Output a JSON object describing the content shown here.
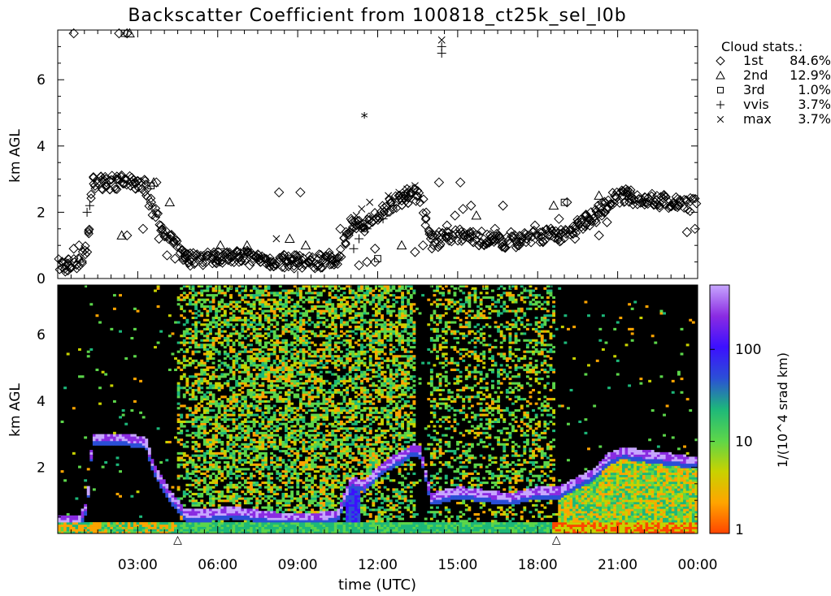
{
  "title": "Backscatter Coefficient from 100818_ct25k_sel_l0b",
  "chart_data": [
    {
      "type": "scatter",
      "panel": "cloud-base",
      "ylabel": "km AGL",
      "ylim": [
        0,
        7.5
      ],
      "yticks": [
        0,
        2,
        4,
        6
      ],
      "xlim": [
        0,
        24
      ],
      "grid": false,
      "legend_position": "top-right",
      "legend_title": "Cloud stats.:",
      "series": [
        {
          "name": "1st",
          "pct": "84.6%",
          "marker": "diamond",
          "x": [
            0.4,
            0.6,
            0.8,
            1.1,
            1.4,
            1.8,
            2.2,
            2.6,
            2.9,
            3.2,
            3.5,
            3.8,
            4.1,
            4.4,
            4.8,
            5.2,
            5.6,
            6.0,
            6.4,
            6.8,
            7.2,
            7.6,
            8.0,
            8.3,
            8.6,
            9.0,
            9.4,
            9.8,
            10.2,
            10.6,
            11.0,
            11.3,
            11.6,
            11.9,
            12.2,
            12.5,
            12.8,
            13.1,
            13.4,
            13.7,
            14.0,
            14.3,
            14.6,
            14.9,
            15.2,
            15.5,
            15.8,
            16.1,
            16.4,
            16.7,
            17.0,
            17.3,
            17.6,
            17.9,
            18.2,
            18.5,
            18.8,
            19.1,
            19.4,
            19.7,
            20.0,
            20.3,
            20.6,
            20.9,
            21.2,
            21.5,
            21.8,
            22.1,
            22.4,
            22.7,
            23.0,
            23.3,
            23.6,
            23.9,
            2.3,
            3.7,
            8.3,
            9.1,
            11.9,
            14.3,
            15.1,
            0.6,
            2.6
          ],
          "y": [
            0.4,
            0.9,
            1.0,
            0.8,
            2.8,
            3.0,
            3.0,
            1.3,
            2.9,
            1.5,
            2.3,
            1.2,
            0.7,
            0.6,
            0.6,
            0.7,
            0.7,
            0.7,
            0.6,
            0.5,
            0.4,
            0.5,
            0.5,
            0.5,
            0.5,
            0.5,
            0.5,
            0.6,
            0.7,
            1.5,
            1.8,
            0.4,
            0.5,
            0.9,
            1.9,
            2.3,
            2.5,
            2.7,
            0.8,
            1.0,
            1.2,
            1.4,
            1.6,
            1.9,
            2.1,
            2.2,
            1.0,
            1.1,
            1.5,
            2.2,
            1.4,
            1.0,
            1.2,
            1.6,
            1.1,
            1.3,
            1.8,
            2.3,
            1.2,
            1.5,
            2.0,
            1.3,
            1.7,
            2.5,
            2.5,
            2.4,
            2.4,
            2.3,
            2.3,
            2.3,
            2.2,
            2.2,
            1.4,
            1.5,
            7.4,
            2.9,
            2.6,
            2.6,
            0.5,
            2.9,
            2.9,
            7.4,
            7.4
          ]
        },
        {
          "name": "2nd",
          "pct": "12.9%",
          "marker": "triangle",
          "x": [
            0.8,
            2.4,
            3.6,
            4.2,
            6.1,
            7.1,
            8.7,
            9.3,
            12.9,
            14.1,
            15.7,
            18.6,
            20.3,
            21.4,
            2.7
          ],
          "y": [
            0.6,
            1.3,
            2.9,
            2.3,
            1.0,
            1.0,
            1.2,
            1.0,
            1.0,
            1.3,
            1.9,
            2.2,
            2.5,
            2.5,
            7.4
          ]
        },
        {
          "name": "3rd",
          "pct": "1.0%",
          "marker": "square",
          "x": [
            2.5,
            3.5,
            12.0,
            19.0
          ],
          "y": [
            7.4,
            2.8,
            0.6,
            2.3
          ]
        },
        {
          "name": "vvis",
          "pct": "3.7%",
          "marker": "plus",
          "x": [
            1.1,
            1.2,
            11.1,
            11.3,
            11.6,
            12.2,
            12.6,
            13.0,
            13.3,
            14.4,
            14.4
          ],
          "y": [
            2.0,
            2.2,
            0.9,
            1.2,
            1.5,
            1.8,
            2.2,
            2.5,
            2.7,
            7.0,
            6.8
          ]
        },
        {
          "name": "max",
          "pct": "3.7%",
          "marker": "x",
          "x": [
            11.2,
            11.4,
            11.7,
            12.4,
            12.8,
            13.1,
            13.4,
            14.4,
            8.2
          ],
          "y": [
            1.9,
            2.1,
            2.3,
            2.5,
            2.6,
            2.7,
            2.8,
            7.2,
            1.2
          ]
        }
      ],
      "annotations": [
        {
          "x": 11.5,
          "y": 4.9,
          "label": "*"
        }
      ]
    },
    {
      "type": "heatmap",
      "panel": "backscatter",
      "ylabel": "km AGL",
      "xlabel": "time (UTC)",
      "ylim": [
        0,
        7.5
      ],
      "yticks": [
        2,
        4,
        6
      ],
      "xlim": [
        0,
        24
      ],
      "xticks": [
        "03:00",
        "06:00",
        "09:00",
        "12:00",
        "15:00",
        "18:00",
        "21:00",
        "00:00"
      ],
      "xtick_hours": [
        3,
        6,
        9,
        12,
        15,
        18,
        21,
        24
      ],
      "colorbar": {
        "label": "1/(10^4 srad km)",
        "scale": "log",
        "range": [
          1,
          500
        ],
        "ticks": [
          "1",
          "10",
          "100"
        ],
        "tick_values": [
          1,
          10,
          100
        ],
        "colors": [
          "#ff4500",
          "#ffa500",
          "#c8d200",
          "#5cd64a",
          "#1db87a",
          "#2b4fd6",
          "#3c10ff",
          "#8a2be2",
          "#c7a6ff"
        ]
      },
      "cloud_layer_km": {
        "t": [
          0,
          0.8,
          1.1,
          1.3,
          2.5,
          3.3,
          3.6,
          4.2,
          4.8,
          5.5,
          6.5,
          7.5,
          8.5,
          9.5,
          10.5,
          11.0,
          11.5,
          12.0,
          12.5,
          13.0,
          13.3,
          13.6,
          14.0,
          15.0,
          16.0,
          17.0,
          18.0,
          18.8,
          19.5,
          20.2,
          20.6,
          21.2,
          22.0,
          23.0,
          23.9
        ],
        "h": [
          0.4,
          0.4,
          0.9,
          2.9,
          2.9,
          2.8,
          2.0,
          1.2,
          0.6,
          0.6,
          0.7,
          0.6,
          0.5,
          0.5,
          0.6,
          1.6,
          1.5,
          1.9,
          2.2,
          2.4,
          2.6,
          2.5,
          1.1,
          1.3,
          1.2,
          1.1,
          1.3,
          1.3,
          1.6,
          1.9,
          2.3,
          2.5,
          2.4,
          2.3,
          2.2
        ]
      },
      "precip_hours": [
        10.8,
        11.3
      ],
      "markers": [
        {
          "t": 4.5,
          "label": "△"
        },
        {
          "t": 18.7,
          "label": "△"
        }
      ]
    }
  ]
}
